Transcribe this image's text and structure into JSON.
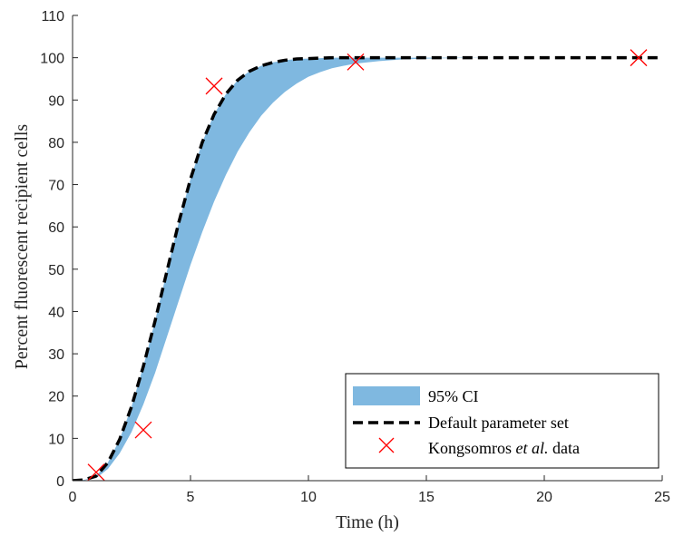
{
  "chart_data": {
    "type": "line",
    "xlabel": "Time (h)",
    "ylabel": "Percent fluorescent recipient cells",
    "xlim": [
      0,
      25
    ],
    "ylim": [
      0,
      110
    ],
    "xticks": [
      0,
      5,
      10,
      15,
      20,
      25
    ],
    "yticks": [
      0,
      10,
      20,
      30,
      40,
      50,
      60,
      70,
      80,
      90,
      100,
      110
    ],
    "grid": false,
    "legend_position": "bottom-right",
    "series": [
      {
        "name": "95% CI",
        "kind": "band",
        "color": "#7fb8e0",
        "x": [
          0,
          0.5,
          1,
          1.5,
          2,
          2.5,
          3,
          3.5,
          4,
          4.5,
          5,
          5.5,
          6,
          6.5,
          7,
          7.5,
          8,
          8.5,
          9,
          9.5,
          10,
          10.5,
          11,
          11.5,
          12,
          13,
          14,
          15,
          16,
          18,
          20,
          22,
          24
        ],
        "lower": [
          0,
          0.1,
          0.6,
          2.8,
          6.5,
          11.5,
          18,
          25.5,
          34,
          42.5,
          51,
          58.8,
          66,
          72.3,
          77.8,
          82.4,
          86.3,
          89.4,
          91.9,
          93.9,
          95.5,
          96.6,
          97.5,
          98.1,
          98.6,
          99.2,
          99.6,
          99.8,
          99.9,
          100,
          100,
          100,
          100
        ],
        "upper": [
          0,
          0.2,
          1.1,
          4.3,
          9.8,
          17.5,
          27,
          37.8,
          49.5,
          61,
          71.3,
          80,
          86.6,
          91.4,
          94.7,
          96.8,
          98.1,
          98.9,
          99.4,
          99.7,
          99.8,
          99.9,
          100,
          100,
          100,
          100,
          100,
          100,
          100,
          100,
          100,
          100,
          100
        ]
      },
      {
        "name": "Default parameter set",
        "kind": "line",
        "color": "#000000",
        "dash": "dashed",
        "x": [
          0,
          0.5,
          1,
          1.5,
          2,
          2.5,
          3,
          3.5,
          4,
          4.5,
          5,
          5.5,
          6,
          6.5,
          7,
          7.5,
          8,
          8.5,
          9,
          9.5,
          10,
          10.5,
          11,
          11.5,
          12,
          13,
          14,
          15,
          16,
          18,
          20,
          22,
          24,
          25
        ],
        "y": [
          0,
          0.2,
          1.1,
          4.3,
          9.8,
          17.5,
          27,
          37.8,
          49.5,
          61,
          71.3,
          80,
          86.6,
          91.4,
          94.7,
          96.8,
          98.1,
          98.9,
          99.4,
          99.7,
          99.8,
          99.9,
          100,
          100,
          100,
          100,
          100,
          100,
          100,
          100,
          100,
          100,
          100,
          100
        ]
      },
      {
        "name": "Kongsomros et al. data",
        "name_parts": {
          "prefix": "Kongsomros ",
          "italic": "et al.",
          "suffix": " data"
        },
        "kind": "scatter",
        "marker": "x",
        "color": "#ff0000",
        "x": [
          1,
          3,
          6,
          12,
          24
        ],
        "y": [
          2,
          12,
          93.3,
          99,
          100
        ]
      }
    ]
  }
}
